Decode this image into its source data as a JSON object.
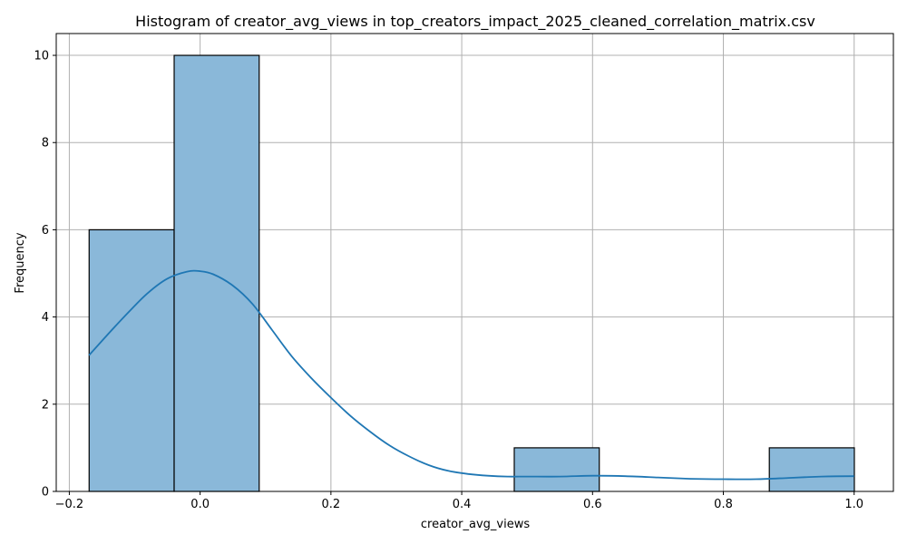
{
  "chart_data": {
    "type": "bar",
    "title": "Histogram of creator_avg_views in top_creators_impact_2025_cleaned_correlation_matrix.csv",
    "xlabel": "creator_avg_views",
    "ylabel": "Frequency",
    "xlim": [
      -0.22,
      1.06
    ],
    "ylim": [
      0,
      10.5
    ],
    "x_ticks": [
      -0.2,
      0.0,
      0.2,
      0.4,
      0.6,
      0.8,
      1.0
    ],
    "x_tick_labels": [
      "−0.2",
      "0.0",
      "0.2",
      "0.4",
      "0.6",
      "0.8",
      "1.0"
    ],
    "y_ticks": [
      0,
      2,
      4,
      6,
      8,
      10
    ],
    "y_tick_labels": [
      "0",
      "2",
      "4",
      "6",
      "8",
      "10"
    ],
    "grid": true,
    "bins": [
      {
        "start": -0.1697,
        "end": -0.0397,
        "count": 6
      },
      {
        "start": -0.0397,
        "end": 0.0903,
        "count": 10
      },
      {
        "start": 0.0903,
        "end": 0.2203,
        "count": 0
      },
      {
        "start": 0.2203,
        "end": 0.3503,
        "count": 0
      },
      {
        "start": 0.3503,
        "end": 0.4803,
        "count": 0
      },
      {
        "start": 0.4803,
        "end": 0.6103,
        "count": 1
      },
      {
        "start": 0.6103,
        "end": 0.7403,
        "count": 0
      },
      {
        "start": 0.7403,
        "end": 0.8703,
        "count": 0
      },
      {
        "start": 0.8703,
        "end": 1.0003,
        "count": 1
      }
    ],
    "kde": {
      "x": [
        -0.17,
        -0.14,
        -0.11,
        -0.08,
        -0.05,
        -0.02,
        0.0,
        0.02,
        0.05,
        0.08,
        0.11,
        0.14,
        0.17,
        0.2,
        0.23,
        0.26,
        0.29,
        0.32,
        0.35,
        0.38,
        0.41,
        0.44,
        0.47,
        0.5,
        0.55,
        0.6,
        0.65,
        0.7,
        0.75,
        0.8,
        0.85,
        0.9,
        0.95,
        1.0
      ],
      "y": [
        3.12,
        3.62,
        4.1,
        4.55,
        4.88,
        5.04,
        5.05,
        4.98,
        4.72,
        4.3,
        3.7,
        3.1,
        2.6,
        2.15,
        1.73,
        1.37,
        1.05,
        0.8,
        0.6,
        0.47,
        0.4,
        0.36,
        0.34,
        0.34,
        0.34,
        0.36,
        0.35,
        0.32,
        0.29,
        0.28,
        0.28,
        0.31,
        0.34,
        0.35
      ]
    },
    "colors": {
      "bar_fill": "#8ab8d9",
      "bar_edge": "#000000",
      "kde_line": "#1f77b4",
      "grid": "#b0b0b0"
    }
  }
}
